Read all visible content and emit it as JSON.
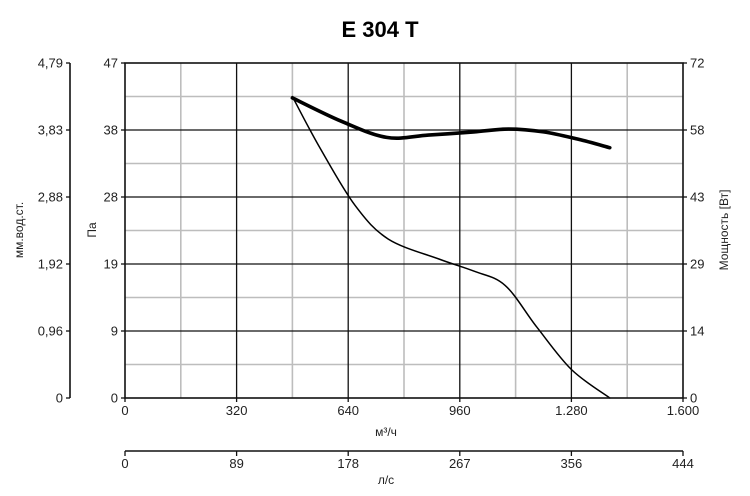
{
  "chart_data": {
    "type": "line",
    "title": "E 304 T",
    "x_axis": {
      "label": "м³/ч",
      "range": [
        0,
        1600
      ],
      "ticks": [
        0,
        320,
        640,
        960,
        1280,
        1600
      ],
      "tick_labels": [
        "0",
        "320",
        "640",
        "960",
        "1.280",
        "1.600"
      ],
      "minor_step": 160
    },
    "x2_axis": {
      "label": "л/с",
      "range": [
        0,
        444
      ],
      "tick_labels": [
        "0",
        "89",
        "178",
        "267",
        "356",
        "444"
      ]
    },
    "y_left_pa": {
      "label": "Па",
      "range": [
        0,
        47
      ],
      "tick_labels": [
        "0",
        "9",
        "19",
        "28",
        "38",
        "47"
      ]
    },
    "y_left_mm": {
      "label": "мм.вод.ст.",
      "range": [
        0,
        4.79
      ],
      "tick_labels": [
        "0",
        "0,96",
        "1,92",
        "2,88",
        "3,83",
        "4,79"
      ]
    },
    "y_right_power": {
      "label": "Мощность [Вт]",
      "range": [
        0,
        72
      ],
      "tick_labels": [
        "0",
        "14",
        "29",
        "43",
        "58",
        "72"
      ]
    },
    "grid": true,
    "series": [
      {
        "role": "pressure",
        "y_axis": "pa",
        "stroke_color": "#000000",
        "points": [
          [
            480,
            42.3
          ],
          [
            560,
            35
          ],
          [
            660,
            27
          ],
          [
            755,
            22.3
          ],
          [
            900,
            19.5
          ],
          [
            1000,
            17.8
          ],
          [
            1090,
            15.8
          ],
          [
            1180,
            10
          ],
          [
            1280,
            4
          ],
          [
            1390,
            0
          ]
        ]
      },
      {
        "role": "power",
        "y_axis": "power",
        "stroke_color": "#000000",
        "points": [
          [
            480,
            64.5
          ],
          [
            620,
            59.5
          ],
          [
            750,
            56
          ],
          [
            870,
            56.5
          ],
          [
            1000,
            57.2
          ],
          [
            1100,
            57.8
          ],
          [
            1200,
            57.2
          ],
          [
            1300,
            55.6
          ],
          [
            1390,
            53.8
          ]
        ]
      }
    ]
  }
}
